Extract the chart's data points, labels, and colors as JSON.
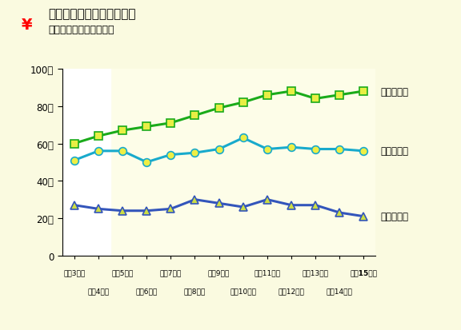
{
  "title": "市税の収入のうつりかわり",
  "subtitle": "（固定資産税・市民税）",
  "bg_outer": "#fafae0",
  "bg_plot_yellow": "#fdfde8",
  "bg_plot_white": "#ffffff",
  "ytick_labels": [
    "0",
    "20億",
    "40億",
    "60億",
    "80億",
    "100億"
  ],
  "ytick_values": [
    0,
    20,
    40,
    60,
    80,
    100
  ],
  "fixed_asset_tax": [
    60,
    64,
    67,
    69,
    71,
    75,
    79,
    82,
    86,
    88,
    84,
    86,
    88
  ],
  "individual_tax": [
    51,
    56,
    56,
    50,
    54,
    55,
    57,
    63,
    57,
    58,
    57,
    57,
    56
  ],
  "corporate_tax": [
    27,
    25,
    24,
    24,
    25,
    30,
    28,
    26,
    30,
    27,
    27,
    23,
    21
  ],
  "fixed_color": "#1aab1a",
  "fixed_marker_color": "#e8ee44",
  "individual_color": "#18aacc",
  "individual_marker_color": "#eeee44",
  "corporate_color": "#3355bb",
  "corporate_marker_color": "#ccdd44",
  "label_fixed": "固定資産税",
  "label_individual": "個人市民税",
  "label_corporate": "法人市民税",
  "xlabel_odd": [
    "平成3年度",
    "平成5年度",
    "平成7年度",
    "平成9年度",
    "平成11年度",
    "平成13年度",
    "平成15年度"
  ],
  "xlabel_even": [
    "平成4年度",
    "平成6年度",
    "平成8年度",
    "平成10年度",
    "平成12年度",
    "平成14年度"
  ]
}
